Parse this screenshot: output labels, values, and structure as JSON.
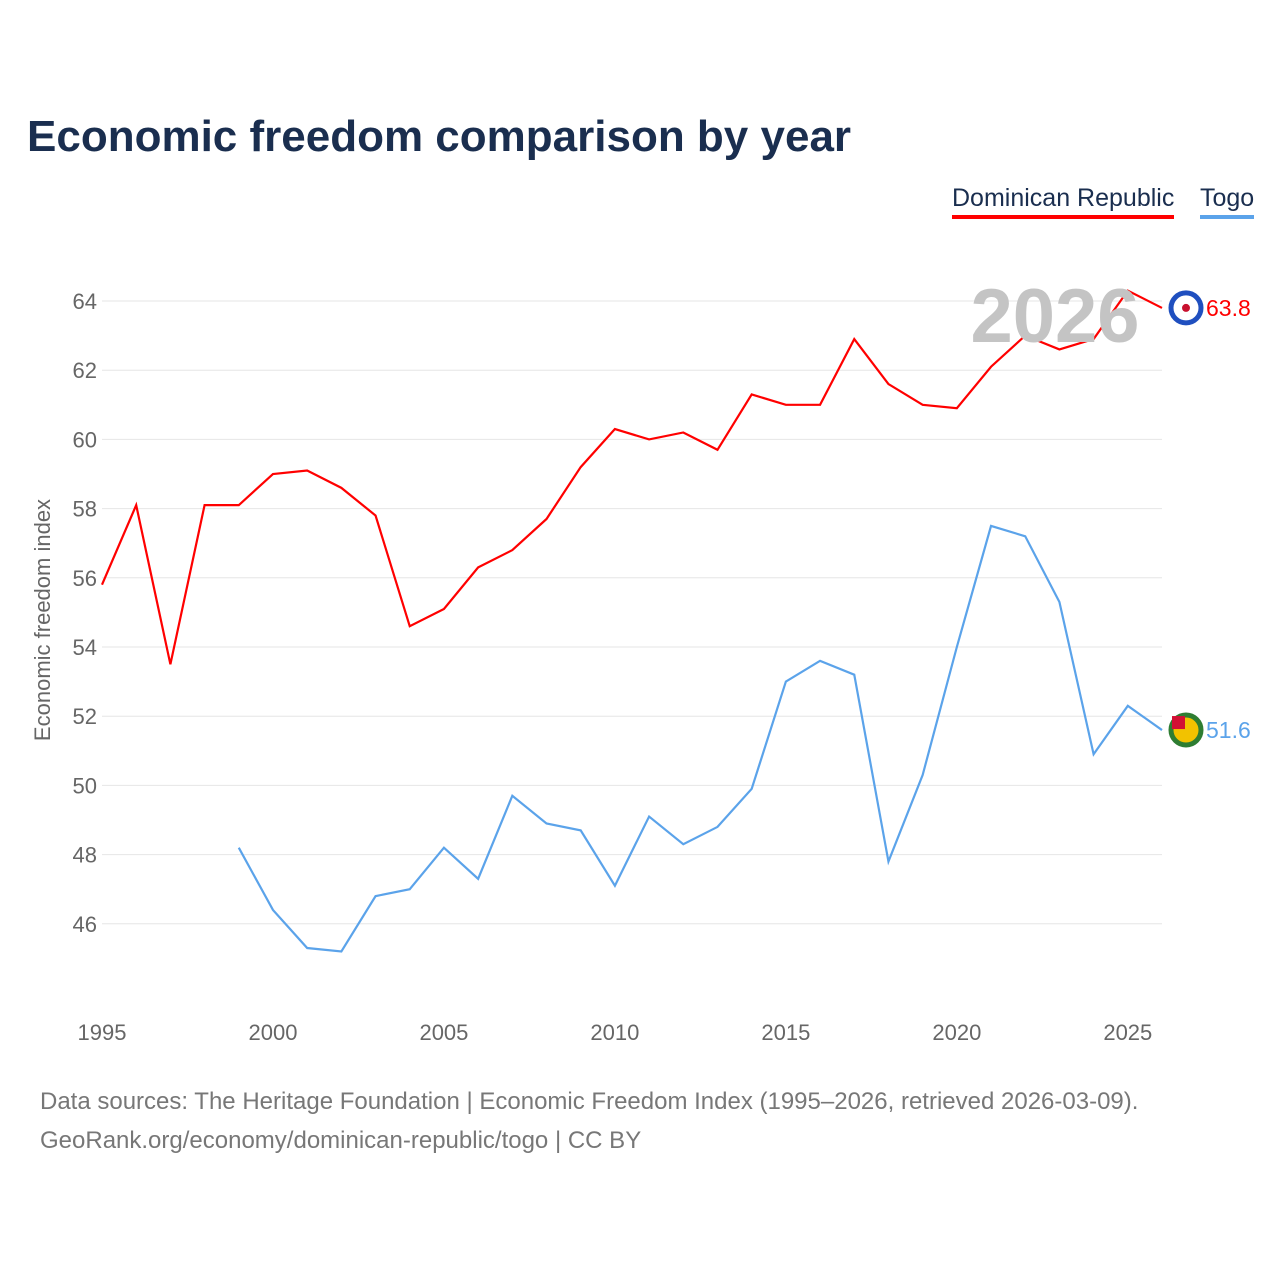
{
  "title": "Economic freedom comparison by year",
  "legend": [
    {
      "label": "Dominican Republic",
      "color": "#ff0000"
    },
    {
      "label": "Togo",
      "color": "#5ba3ea"
    }
  ],
  "watermark_year": "2026",
  "source_line1": "Data sources: The Heritage Foundation | Economic Freedom Index (1995–2026, retrieved 2026-03-09).",
  "source_line2": "GeoRank.org/economy/dominican-republic/togo | CC BY",
  "chart_data": {
    "type": "line",
    "title": "Economic freedom comparison by year",
    "xlabel": "",
    "ylabel": "Economic freedom index",
    "xlim": [
      1995,
      2026
    ],
    "ylim": [
      44,
      65
    ],
    "xticks": [
      1995,
      2000,
      2005,
      2010,
      2015,
      2020,
      2025
    ],
    "yticks": [
      46,
      48,
      50,
      52,
      54,
      56,
      58,
      60,
      62,
      64
    ],
    "grid": true,
    "legend_placement": "top-right",
    "series": [
      {
        "name": "Dominican Republic",
        "color": "#ff0000",
        "end_label": "63.8",
        "x": [
          1995,
          1996,
          1997,
          1998,
          1999,
          2000,
          2001,
          2002,
          2003,
          2004,
          2005,
          2006,
          2007,
          2008,
          2009,
          2010,
          2011,
          2012,
          2013,
          2014,
          2015,
          2016,
          2017,
          2018,
          2019,
          2020,
          2021,
          2022,
          2023,
          2024,
          2025,
          2026
        ],
        "values": [
          55.8,
          58.1,
          53.5,
          58.1,
          58.1,
          59.0,
          59.1,
          58.6,
          57.8,
          54.6,
          55.1,
          56.3,
          56.8,
          57.7,
          59.2,
          60.3,
          60.0,
          60.2,
          59.7,
          61.3,
          61.0,
          61.0,
          62.9,
          61.6,
          61.0,
          60.9,
          62.1,
          63.0,
          62.6,
          62.9,
          64.3,
          63.8
        ]
      },
      {
        "name": "Togo",
        "color": "#5ba3ea",
        "end_label": "51.6",
        "x": [
          1999,
          2000,
          2001,
          2002,
          2003,
          2004,
          2005,
          2006,
          2007,
          2008,
          2009,
          2010,
          2011,
          2012,
          2013,
          2014,
          2015,
          2016,
          2017,
          2018,
          2019,
          2020,
          2021,
          2022,
          2023,
          2024,
          2025,
          2026
        ],
        "values": [
          48.2,
          46.4,
          45.3,
          45.2,
          46.8,
          47.0,
          48.2,
          47.3,
          49.7,
          48.9,
          48.7,
          47.1,
          49.1,
          48.3,
          48.8,
          49.9,
          53.0,
          53.6,
          53.2,
          47.8,
          50.3,
          54.0,
          57.5,
          57.2,
          55.3,
          50.9,
          52.3,
          51.6
        ]
      }
    ]
  }
}
